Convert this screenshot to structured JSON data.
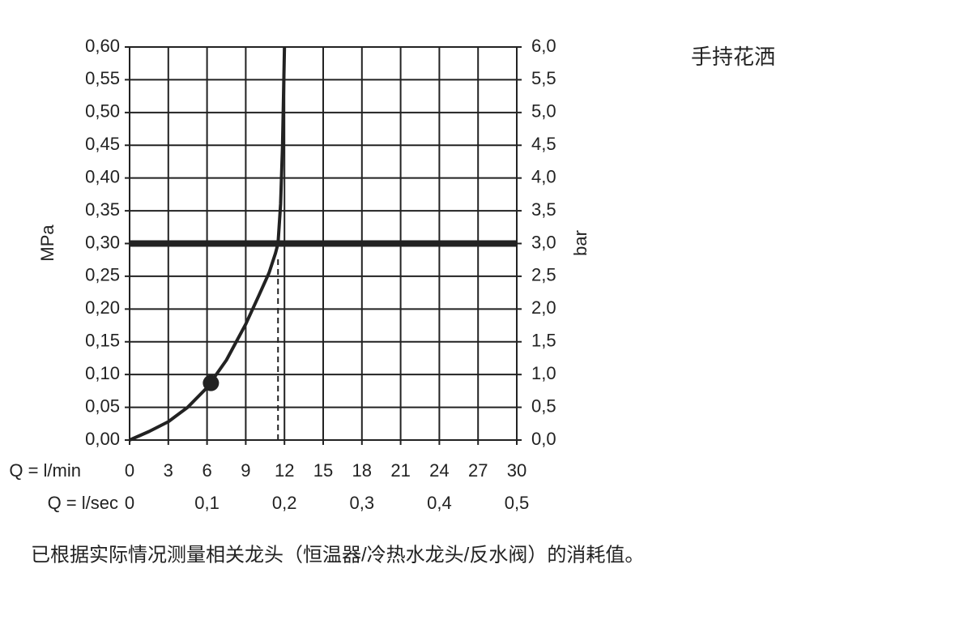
{
  "chart_data": {
    "type": "line",
    "title": "手持花洒",
    "xlabel": "Q = l/min",
    "x2label": "Q = l/sec",
    "ylabel": "MPa",
    "y2label": "bar",
    "note": "已根据实际情况测量相关龙头（恒温器/冷热水龙头/反水阀）的消耗值。",
    "xlim": [
      0,
      30
    ],
    "xticks": [
      0,
      3,
      6,
      9,
      12,
      15,
      18,
      21,
      24,
      27,
      30
    ],
    "x2lim": [
      0,
      0.5
    ],
    "x2ticks": [
      0,
      {
        "value": 0.1,
        "label": "0,1"
      },
      {
        "value": 0.2,
        "label": "0,2"
      },
      {
        "value": 0.3,
        "label": "0,3"
      },
      {
        "value": 0.4,
        "label": "0,4"
      },
      {
        "value": 0.5,
        "label": "0,5"
      }
    ],
    "ylim": [
      0,
      0.6
    ],
    "yticks": [
      {
        "value": 0,
        "label": "0,00"
      },
      {
        "value": 0.05,
        "label": "0,05"
      },
      {
        "value": 0.1,
        "label": "0,10"
      },
      {
        "value": 0.15,
        "label": "0,15"
      },
      {
        "value": 0.2,
        "label": "0,20"
      },
      {
        "value": 0.25,
        "label": "0,25"
      },
      {
        "value": 0.3,
        "label": "0,30"
      },
      {
        "value": 0.35,
        "label": "0,35"
      },
      {
        "value": 0.4,
        "label": "0,40"
      },
      {
        "value": 0.45,
        "label": "0,45"
      },
      {
        "value": 0.5,
        "label": "0,50"
      },
      {
        "value": 0.55,
        "label": "0,55"
      },
      {
        "value": 0.6,
        "label": "0,60"
      }
    ],
    "y2lim": [
      0,
      6
    ],
    "y2ticks": [
      {
        "value": 0,
        "label": "0,0"
      },
      {
        "value": 0.5,
        "label": "0,5"
      },
      {
        "value": 1,
        "label": "1,0"
      },
      {
        "value": 1.5,
        "label": "1,5"
      },
      {
        "value": 2,
        "label": "2,0"
      },
      {
        "value": 2.5,
        "label": "2,5"
      },
      {
        "value": 3,
        "label": "3,0"
      },
      {
        "value": 3.5,
        "label": "3,5"
      },
      {
        "value": 4,
        "label": "4,0"
      },
      {
        "value": 4.5,
        "label": "4,5"
      },
      {
        "value": 5,
        "label": "5,0"
      },
      {
        "value": 5.5,
        "label": "5,5"
      },
      {
        "value": 6,
        "label": "6,0"
      }
    ],
    "grid": true,
    "color": "#222222",
    "series": [
      {
        "x": [
          0,
          1.5,
          3,
          4.5,
          6,
          7.5,
          9,
          10,
          10.8,
          11.3,
          11.5,
          11.7,
          11.85,
          12.0
        ],
        "values": [
          0,
          0.013,
          0.028,
          0.05,
          0.08,
          0.122,
          0.177,
          0.22,
          0.255,
          0.285,
          0.3,
          0.36,
          0.45,
          0.6
        ]
      }
    ],
    "marker": {
      "x": 6.3,
      "y": 0.087
    },
    "hline": 0.3,
    "vline": {
      "x": 11.5,
      "y": 0.28
    }
  }
}
